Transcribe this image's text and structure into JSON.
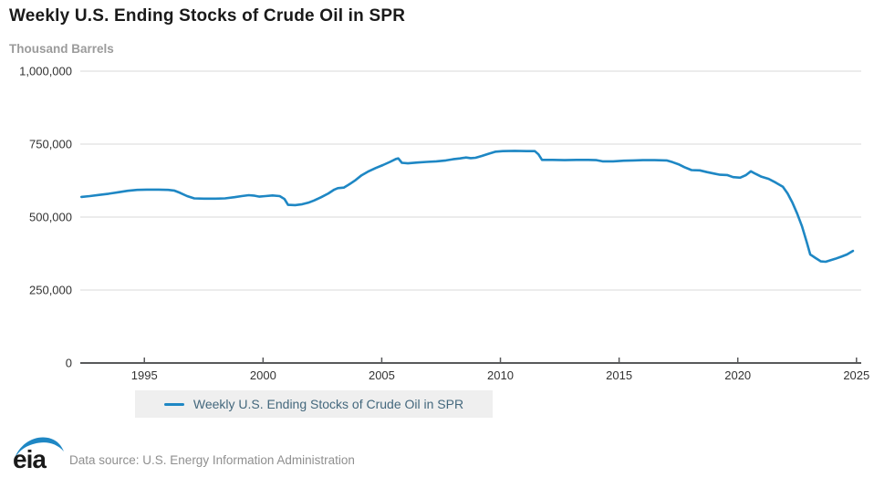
{
  "header": {
    "title": "Weekly U.S. Ending Stocks of Crude Oil in SPR",
    "subtitle": "Thousand Barrels"
  },
  "legend": {
    "label": "Weekly U.S. Ending Stocks of Crude Oil in SPR"
  },
  "footer": {
    "logo_text": "eia",
    "source": "Data source: U.S. Energy Information Administration"
  },
  "colors": {
    "line": "#1e87c4",
    "grid": "#d8d8d8",
    "axis": "#58595b",
    "tick_label": "#333333",
    "legend_bg": "#efefef",
    "legend_text": "#44687d",
    "logo_swoosh": "#1e87c4",
    "logo_text": "#1a1a1a"
  },
  "chart_data": {
    "type": "line",
    "title": "Weekly U.S. Ending Stocks of Crude Oil in SPR",
    "ylabel": "Thousand Barrels",
    "xlabel": "",
    "grid": true,
    "legend_position": "bottom",
    "x_domain": [
      1992.3,
      2025.2
    ],
    "ylim": [
      0,
      1000000
    ],
    "x_ticks": [
      1995,
      2000,
      2005,
      2010,
      2015,
      2020,
      2025
    ],
    "x_tick_labels": [
      "1995",
      "2000",
      "2005",
      "2010",
      "2015",
      "2020",
      "2025"
    ],
    "y_ticks": [
      0,
      250000,
      500000,
      750000,
      1000000
    ],
    "y_tick_labels": [
      "0",
      "250,000",
      "500,000",
      "750,000",
      "1,000,000"
    ],
    "series": [
      {
        "name": "Weekly U.S. Ending Stocks of Crude Oil in SPR",
        "color": "#1e87c4",
        "points": [
          [
            1992.35,
            569000
          ],
          [
            1992.7,
            572000
          ],
          [
            1993.1,
            576000
          ],
          [
            1993.5,
            580000
          ],
          [
            1993.9,
            585000
          ],
          [
            1994.3,
            590000
          ],
          [
            1994.7,
            593000
          ],
          [
            1995.1,
            594000
          ],
          [
            1995.6,
            594000
          ],
          [
            1996.0,
            593000
          ],
          [
            1996.25,
            591000
          ],
          [
            1996.5,
            583000
          ],
          [
            1996.8,
            572000
          ],
          [
            1997.1,
            564000
          ],
          [
            1997.5,
            563000
          ],
          [
            1998.0,
            563000
          ],
          [
            1998.4,
            564000
          ],
          [
            1998.8,
            568000
          ],
          [
            1999.1,
            572000
          ],
          [
            1999.4,
            575000
          ],
          [
            1999.65,
            573000
          ],
          [
            1999.85,
            570000
          ],
          [
            2000.1,
            572000
          ],
          [
            2000.4,
            574000
          ],
          [
            2000.7,
            572000
          ],
          [
            2000.9,
            562000
          ],
          [
            2001.05,
            542000
          ],
          [
            2001.35,
            541000
          ],
          [
            2001.65,
            544000
          ],
          [
            2001.9,
            549000
          ],
          [
            2002.15,
            557000
          ],
          [
            2002.45,
            568000
          ],
          [
            2002.75,
            581000
          ],
          [
            2003.0,
            594000
          ],
          [
            2003.15,
            599000
          ],
          [
            2003.4,
            601000
          ],
          [
            2003.65,
            613000
          ],
          [
            2003.9,
            627000
          ],
          [
            2004.15,
            643000
          ],
          [
            2004.45,
            657000
          ],
          [
            2004.75,
            668000
          ],
          [
            2005.05,
            678000
          ],
          [
            2005.35,
            689000
          ],
          [
            2005.6,
            699000
          ],
          [
            2005.7,
            701000
          ],
          [
            2005.85,
            686000
          ],
          [
            2006.1,
            684000
          ],
          [
            2006.5,
            687000
          ],
          [
            2006.9,
            689000
          ],
          [
            2007.3,
            691000
          ],
          [
            2007.7,
            694000
          ],
          [
            2008.0,
            698000
          ],
          [
            2008.3,
            701000
          ],
          [
            2008.55,
            704000
          ],
          [
            2008.75,
            702000
          ],
          [
            2008.95,
            703000
          ],
          [
            2009.2,
            709000
          ],
          [
            2009.5,
            717000
          ],
          [
            2009.8,
            724000
          ],
          [
            2010.1,
            726000
          ],
          [
            2010.6,
            727000
          ],
          [
            2011.1,
            726000
          ],
          [
            2011.45,
            726000
          ],
          [
            2011.6,
            715000
          ],
          [
            2011.75,
            696000
          ],
          [
            2012.2,
            696000
          ],
          [
            2012.7,
            695000
          ],
          [
            2013.2,
            696000
          ],
          [
            2013.7,
            696000
          ],
          [
            2014.05,
            695000
          ],
          [
            2014.3,
            691000
          ],
          [
            2014.75,
            691000
          ],
          [
            2015.2,
            693000
          ],
          [
            2015.6,
            694000
          ],
          [
            2016.0,
            695000
          ],
          [
            2016.5,
            695000
          ],
          [
            2017.0,
            694000
          ],
          [
            2017.25,
            688000
          ],
          [
            2017.5,
            681000
          ],
          [
            2017.75,
            671000
          ],
          [
            2018.05,
            661000
          ],
          [
            2018.4,
            660000
          ],
          [
            2018.7,
            654000
          ],
          [
            2019.0,
            649000
          ],
          [
            2019.25,
            645000
          ],
          [
            2019.55,
            644000
          ],
          [
            2019.8,
            637000
          ],
          [
            2020.1,
            635000
          ],
          [
            2020.35,
            644000
          ],
          [
            2020.55,
            657000
          ],
          [
            2020.75,
            648000
          ],
          [
            2021.0,
            638000
          ],
          [
            2021.3,
            631000
          ],
          [
            2021.6,
            618000
          ],
          [
            2021.9,
            604000
          ],
          [
            2022.1,
            581000
          ],
          [
            2022.3,
            550000
          ],
          [
            2022.5,
            512000
          ],
          [
            2022.7,
            469000
          ],
          [
            2022.9,
            415000
          ],
          [
            2023.05,
            372000
          ],
          [
            2023.25,
            361000
          ],
          [
            2023.5,
            348000
          ],
          [
            2023.7,
            347000
          ],
          [
            2023.9,
            352000
          ],
          [
            2024.1,
            357000
          ],
          [
            2024.35,
            364000
          ],
          [
            2024.6,
            372000
          ],
          [
            2024.85,
            384000
          ]
        ]
      }
    ]
  }
}
